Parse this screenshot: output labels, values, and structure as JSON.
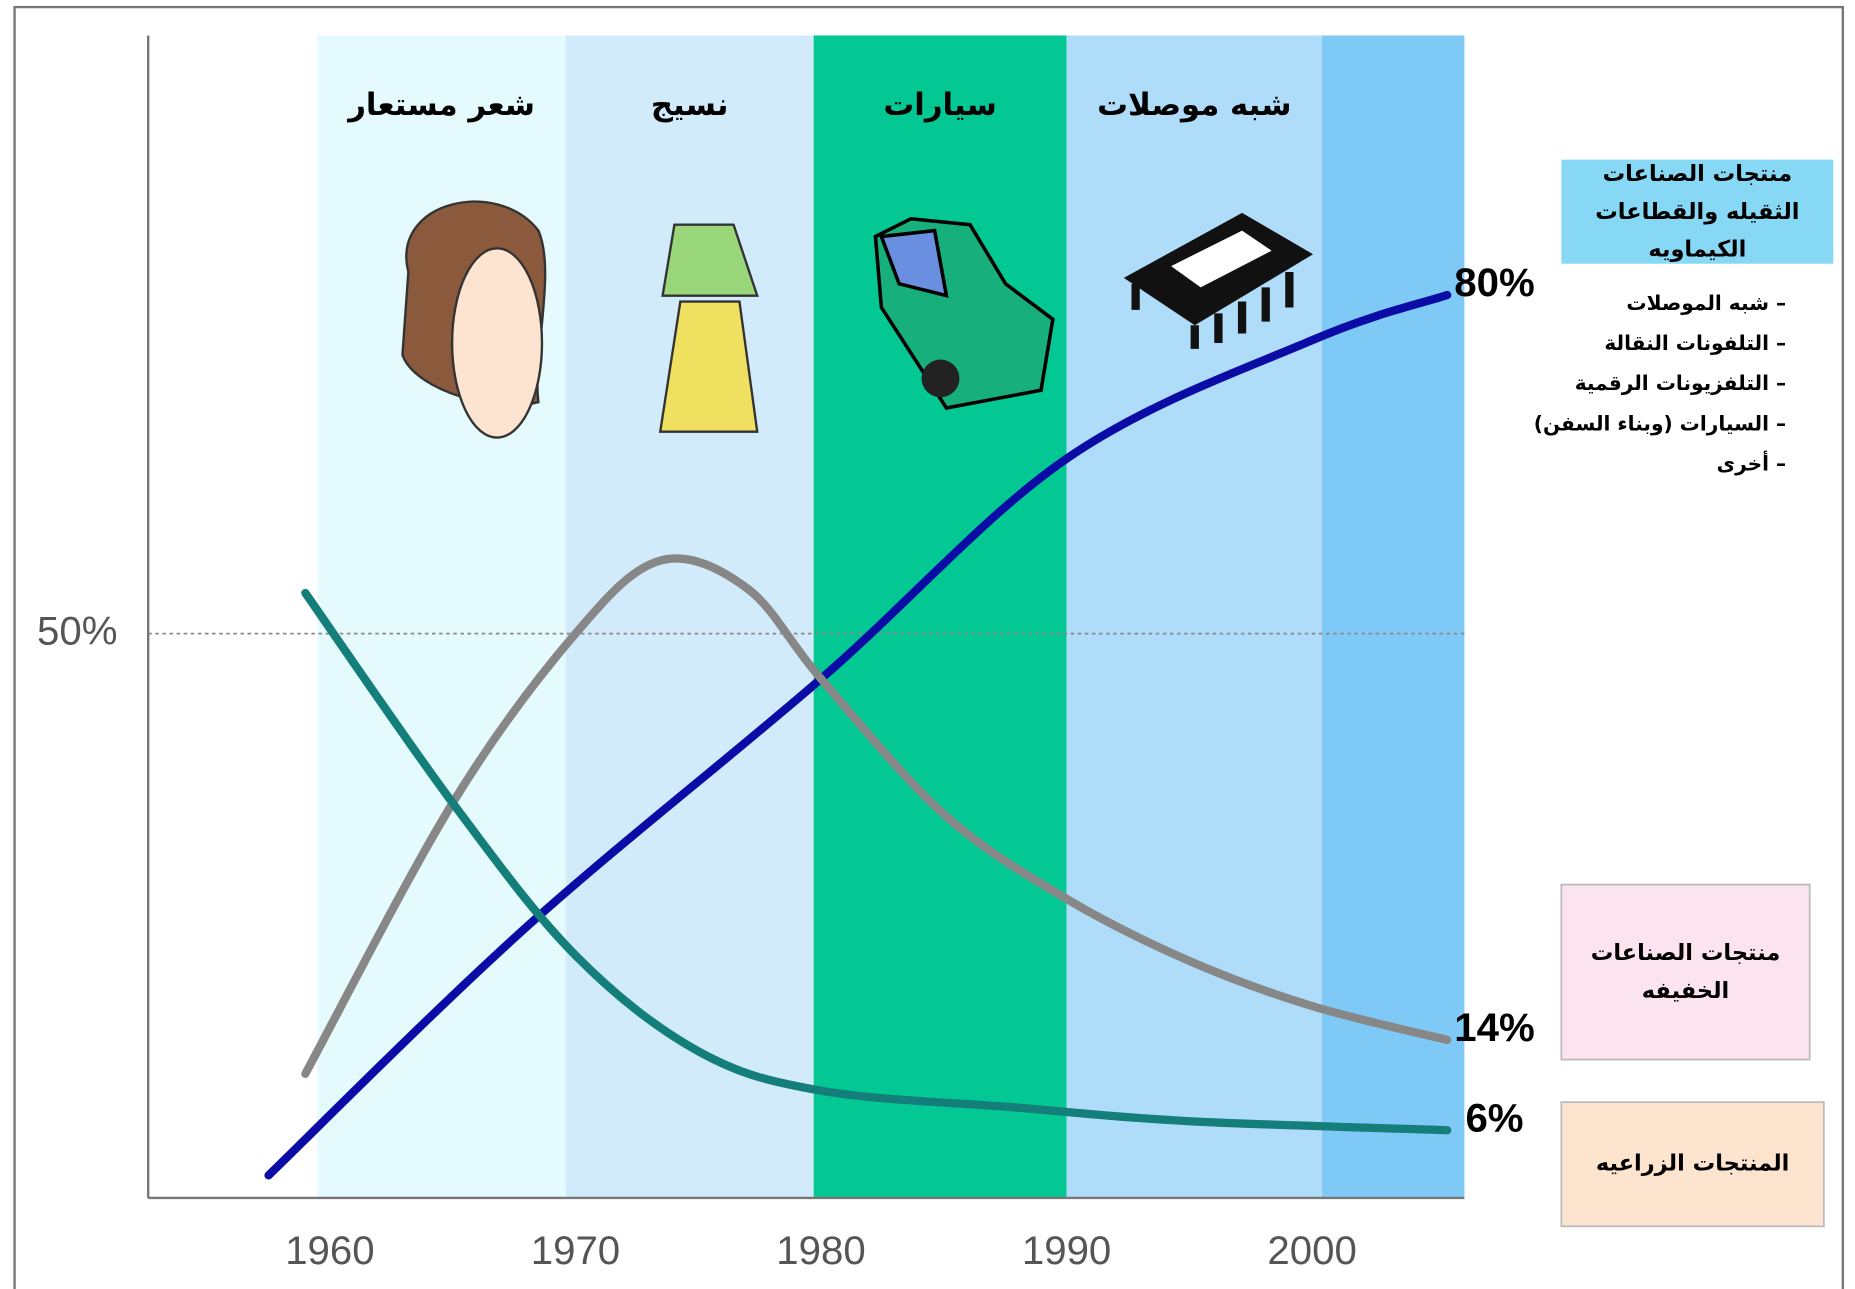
{
  "chart_data": {
    "type": "line",
    "xlim": [
      1952.6,
      2006.2
    ],
    "xticks": [
      1960,
      1970,
      1980,
      1990,
      2000
    ],
    "ylim": [
      0,
      103
    ],
    "yticks": [
      {
        "value": 50,
        "label": "50%"
      }
    ],
    "grid": true,
    "bands": [
      {
        "label": "شعر مستعار",
        "x0": 1959.5,
        "x1": 1969.6,
        "color": "#e4fafd"
      },
      {
        "label": "نسيج",
        "x0": 1969.6,
        "x1": 1979.7,
        "color": "#d2ebfa"
      },
      {
        "label": "سيارات",
        "x0": 1979.7,
        "x1": 1990,
        "color": "#04c894"
      },
      {
        "label": "شبه موصلات",
        "x0": 1990,
        "x1": 2000.4,
        "color": "#aedcf9"
      },
      {
        "x0": 2000.4,
        "x1": 2006.2,
        "color": "#7fc9f6"
      }
    ],
    "series": [
      {
        "name": "منتجات الصناعات الثقيله والقطاعات الكيماويه",
        "color": "#0b0ba6",
        "box": "#87d8f4",
        "items": [
          "– شبه الموصلات",
          "– التلفونات النقالة",
          "– التلفزيونات الرقمية",
          "– السيارات (وبناء السفن)",
          "– أخرى"
        ],
        "x": [
          1957.5,
          1968,
          1980,
          1990,
          2000,
          2005.5
        ],
        "values": [
          2,
          24,
          46,
          65.5,
          76,
          80
        ],
        "value_labels": [
          null,
          null,
          null,
          null,
          null,
          "80%"
        ]
      },
      {
        "name": "منتجات الصناعات الخفيفه",
        "color": "#878787",
        "box": "#fbe3ef",
        "x": [
          1959,
          1965,
          1970,
          1973.5,
          1977,
          1980,
          1985,
          1990,
          1995,
          2000,
          2005.5
        ],
        "values": [
          11,
          35,
          50,
          56.5,
          54,
          46,
          34,
          26.5,
          21,
          17,
          14
        ],
        "value_labels": [
          null,
          null,
          null,
          null,
          null,
          null,
          null,
          null,
          null,
          null,
          "14%"
        ]
      },
      {
        "name": "المنتجات الزراعيه",
        "color": "#147f7a",
        "box": "#fce4cf",
        "x": [
          1959,
          1965,
          1970,
          1975,
          1980,
          1988,
          1995,
          2005.5
        ],
        "values": [
          53.6,
          35,
          21.5,
          13,
          9.5,
          8,
          6.8,
          6
        ],
        "value_labels": [
          null,
          null,
          null,
          null,
          null,
          null,
          null,
          "6%"
        ]
      }
    ]
  }
}
